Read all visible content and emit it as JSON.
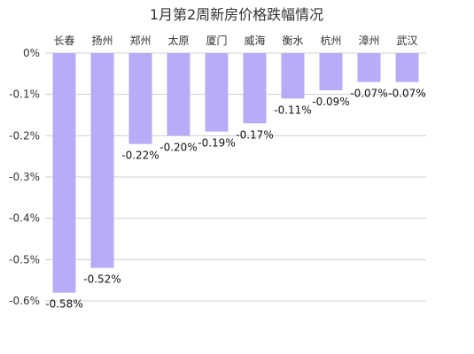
{
  "colors": {
    "bar": "#b7acf8",
    "grid": "#d0d0d0",
    "text": "#333333"
  },
  "chart_data": {
    "type": "bar",
    "title": "1月第2周新房价格跌幅情况",
    "xlabel": "",
    "ylabel": "",
    "categories": [
      "长春",
      "扬州",
      "郑州",
      "太原",
      "厦门",
      "威海",
      "衡水",
      "杭州",
      "漳州",
      "武汉"
    ],
    "values": [
      -0.58,
      -0.52,
      -0.22,
      -0.2,
      -0.19,
      -0.17,
      -0.11,
      -0.09,
      -0.07,
      -0.07
    ],
    "value_labels": [
      "-0.58%",
      "-0.52%",
      "-0.22%",
      "-0.20%",
      "-0.19%",
      "-0.17%",
      "-0.11%",
      "-0.09%",
      "-0.07%",
      "-0.07%"
    ],
    "ylim": [
      -0.6,
      0
    ],
    "yticks": [
      0,
      -0.1,
      -0.2,
      -0.3,
      -0.4,
      -0.5,
      -0.6
    ],
    "ytick_labels": [
      "0%",
      "-0.1%",
      "-0.2%",
      "-0.3%",
      "-0.4%",
      "-0.5%",
      "-0.6%"
    ],
    "grid": true,
    "legend": "none",
    "category_axis_position": "top",
    "value_label_position": "below-bar-end"
  }
}
